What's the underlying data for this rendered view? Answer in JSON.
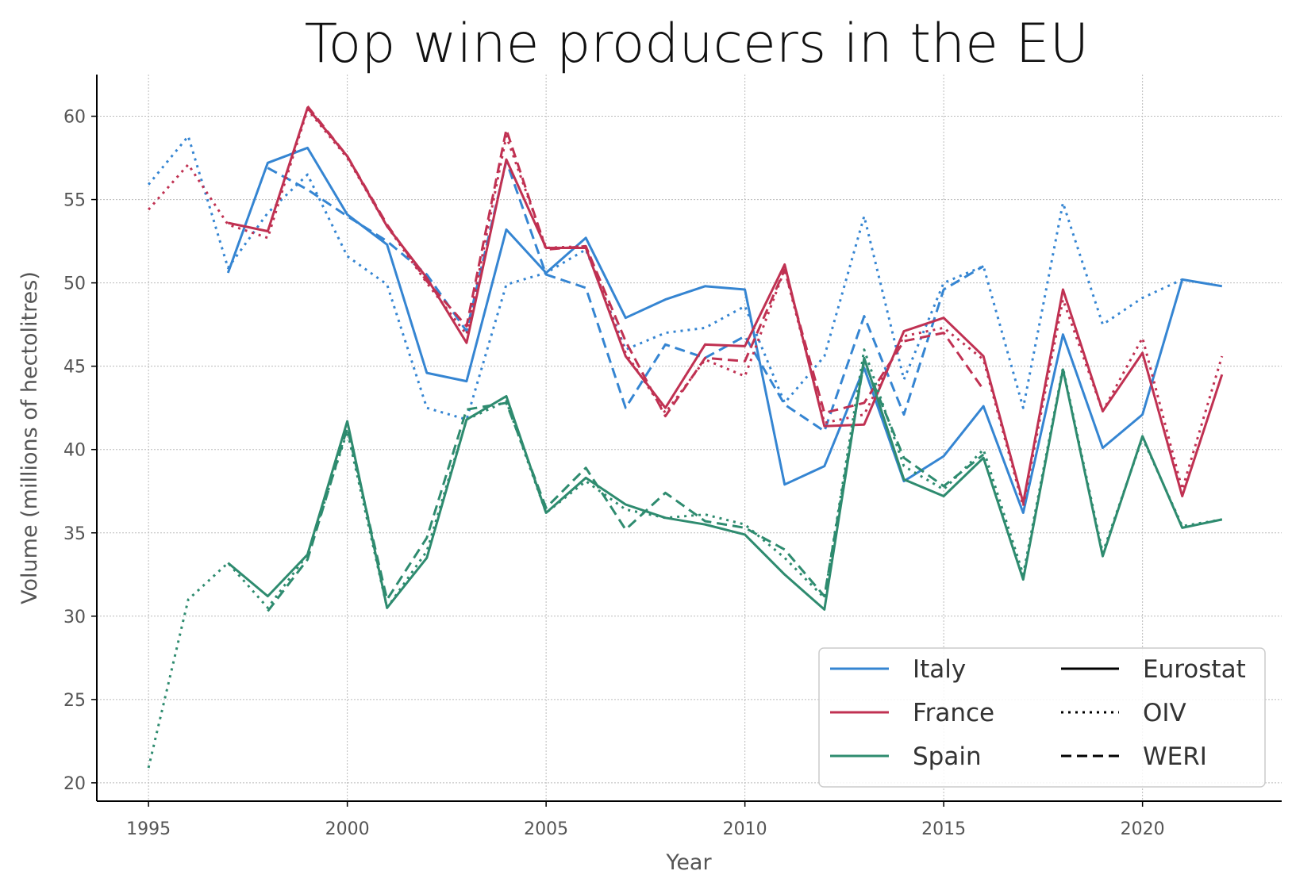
{
  "chart_data": {
    "type": "line",
    "title": "Top wine producers in the EU",
    "xlabel": "Year",
    "ylabel": "Volume (millions of hectolitres)",
    "xlim": [
      1993.7,
      2023.5
    ],
    "ylim": [
      18.9,
      62.5
    ],
    "xticks": [
      1995,
      2000,
      2005,
      2010,
      2015,
      2020
    ],
    "yticks": [
      20,
      25,
      30,
      35,
      40,
      45,
      50,
      55,
      60
    ],
    "grid": true,
    "legend_position": "bottom-right",
    "colors": {
      "Italy": "#3585D2",
      "France": "#C03152",
      "Spain": "#2E8B6F"
    },
    "legend": {
      "countries": [
        "Italy",
        "France",
        "Spain"
      ],
      "sources": [
        {
          "label": "Eurostat",
          "style": "solid"
        },
        {
          "label": "OIV",
          "style": "dotted"
        },
        {
          "label": "WERI",
          "style": "dashed"
        }
      ]
    },
    "series": [
      {
        "country": "Italy",
        "source": "Eurostat",
        "x": [
          1997,
          1998,
          1999,
          2000,
          2001,
          2002,
          2003,
          2004,
          2005,
          2006,
          2007,
          2008,
          2009,
          2010,
          2011,
          2012,
          2013,
          2014,
          2015,
          2016,
          2017,
          2018,
          2019,
          2020,
          2021,
          2022
        ],
        "y": [
          50.6,
          57.2,
          58.1,
          54.1,
          52.3,
          44.6,
          44.1,
          53.2,
          50.6,
          52.7,
          47.9,
          49.0,
          49.8,
          49.6,
          37.9,
          39.0,
          44.9,
          38.1,
          39.6,
          42.6,
          36.2,
          46.9,
          40.1,
          42.1,
          50.2,
          49.8
        ]
      },
      {
        "country": "Italy",
        "source": "OIV",
        "x": [
          1995,
          1996,
          1997,
          1998,
          1999,
          2000,
          2001,
          2002,
          2003,
          2004,
          2005,
          2006,
          2007,
          2008,
          2009,
          2010,
          2011,
          2012,
          2013,
          2014,
          2015,
          2016,
          2017,
          2018,
          2019,
          2020,
          2021
        ],
        "y": [
          55.9,
          58.8,
          50.9,
          54.2,
          56.5,
          51.6,
          49.9,
          42.5,
          41.8,
          49.9,
          50.6,
          52.0,
          46.0,
          47.0,
          47.3,
          48.6,
          42.8,
          45.6,
          54.0,
          44.2,
          50.0,
          51.0,
          42.5,
          54.8,
          47.5,
          49.1,
          50.2
        ]
      },
      {
        "country": "Italy",
        "source": "WERI",
        "x": [
          1998,
          1999,
          2000,
          2001,
          2002,
          2003,
          2004,
          2005,
          2006,
          2007,
          2008,
          2009,
          2010,
          2011,
          2012,
          2013,
          2014,
          2015,
          2016
        ],
        "y": [
          56.9,
          55.6,
          54.0,
          52.5,
          50.5,
          47.1,
          57.3,
          50.5,
          49.7,
          42.5,
          46.3,
          45.5,
          46.8,
          42.7,
          41.1,
          48.0,
          42.1,
          49.6,
          51.0
        ]
      },
      {
        "country": "France",
        "source": "Eurostat",
        "x": [
          1997,
          1998,
          1999,
          2000,
          2001,
          2002,
          2003,
          2004,
          2005,
          2006,
          2007,
          2008,
          2009,
          2010,
          2011,
          2012,
          2013,
          2014,
          2015,
          2016,
          2017,
          2018,
          2019,
          2020,
          2021,
          2022
        ],
        "y": [
          53.6,
          53.1,
          60.5,
          57.6,
          53.4,
          50.3,
          46.4,
          57.4,
          52.1,
          52.1,
          45.6,
          42.5,
          46.3,
          46.2,
          51.1,
          41.4,
          41.5,
          47.1,
          47.9,
          45.6,
          36.8,
          49.6,
          42.3,
          45.8,
          37.2,
          44.5
        ]
      },
      {
        "country": "France",
        "source": "OIV",
        "x": [
          1995,
          1996,
          1997,
          1998,
          1999,
          2000,
          2001,
          2002,
          2003,
          2004,
          2005,
          2006,
          2007,
          2008,
          2009,
          2010,
          2011,
          2012,
          2013,
          2014,
          2015,
          2016,
          2017,
          2018,
          2019,
          2020,
          2021,
          2022
        ],
        "y": [
          54.4,
          57.1,
          53.5,
          52.7,
          60.4,
          57.5,
          53.4,
          50.0,
          46.9,
          58.8,
          52.1,
          52.2,
          45.8,
          42.2,
          45.4,
          44.4,
          50.8,
          41.6,
          42.1,
          46.8,
          47.3,
          45.4,
          36.6,
          49.0,
          42.3,
          46.7,
          37.6,
          45.6
        ]
      },
      {
        "country": "France",
        "source": "WERI",
        "x": [
          1999,
          2000,
          2001,
          2002,
          2003,
          2004,
          2005,
          2006,
          2007,
          2008,
          2009,
          2010,
          2011,
          2012,
          2013,
          2014,
          2015,
          2016
        ],
        "y": [
          60.6,
          57.6,
          53.5,
          50.1,
          47.4,
          59.2,
          52.0,
          52.2,
          46.5,
          42.0,
          45.5,
          45.3,
          50.8,
          42.2,
          42.8,
          46.5,
          47.0,
          43.6
        ]
      },
      {
        "country": "Spain",
        "source": "Eurostat",
        "x": [
          1997,
          1998,
          1999,
          2000,
          2001,
          2002,
          2003,
          2004,
          2005,
          2006,
          2007,
          2008,
          2009,
          2010,
          2011,
          2012,
          2013,
          2014,
          2015,
          2016,
          2017,
          2018,
          2019,
          2020,
          2021,
          2022
        ],
        "y": [
          33.2,
          31.2,
          33.7,
          41.7,
          30.5,
          33.5,
          41.8,
          43.2,
          36.2,
          38.3,
          36.7,
          35.9,
          35.5,
          34.9,
          32.5,
          30.4,
          45.5,
          38.2,
          37.2,
          39.5,
          32.2,
          44.8,
          33.6,
          40.8,
          35.3,
          35.8
        ]
      },
      {
        "country": "Spain",
        "source": "OIV",
        "x": [
          1995,
          1996,
          1997,
          1998,
          1999,
          2000,
          2001,
          2002,
          2003,
          2004,
          2005,
          2006,
          2007,
          2008,
          2009,
          2010,
          2011,
          2012,
          2013,
          2014,
          2015,
          2016,
          2017,
          2018,
          2019,
          2020,
          2021,
          2022
        ],
        "y": [
          20.9,
          31.0,
          33.2,
          30.5,
          33.7,
          41.1,
          30.5,
          33.9,
          41.8,
          42.9,
          36.2,
          38.1,
          36.4,
          35.9,
          36.1,
          35.5,
          33.5,
          31.1,
          46.0,
          39.0,
          37.6,
          40.0,
          32.5,
          44.9,
          33.8,
          40.7,
          35.4,
          35.8
        ]
      },
      {
        "country": "Spain",
        "source": "WERI",
        "x": [
          1998,
          1999,
          2000,
          2001,
          2002,
          2003,
          2004,
          2005,
          2006,
          2007,
          2008,
          2009,
          2010,
          2011,
          2012,
          2013,
          2014,
          2015,
          2016
        ],
        "y": [
          30.3,
          33.4,
          41.3,
          31.0,
          34.7,
          42.4,
          42.8,
          36.5,
          38.9,
          35.2,
          37.4,
          35.7,
          35.3,
          34.0,
          31.2,
          45.3,
          39.5,
          37.8,
          39.7
        ]
      }
    ]
  }
}
